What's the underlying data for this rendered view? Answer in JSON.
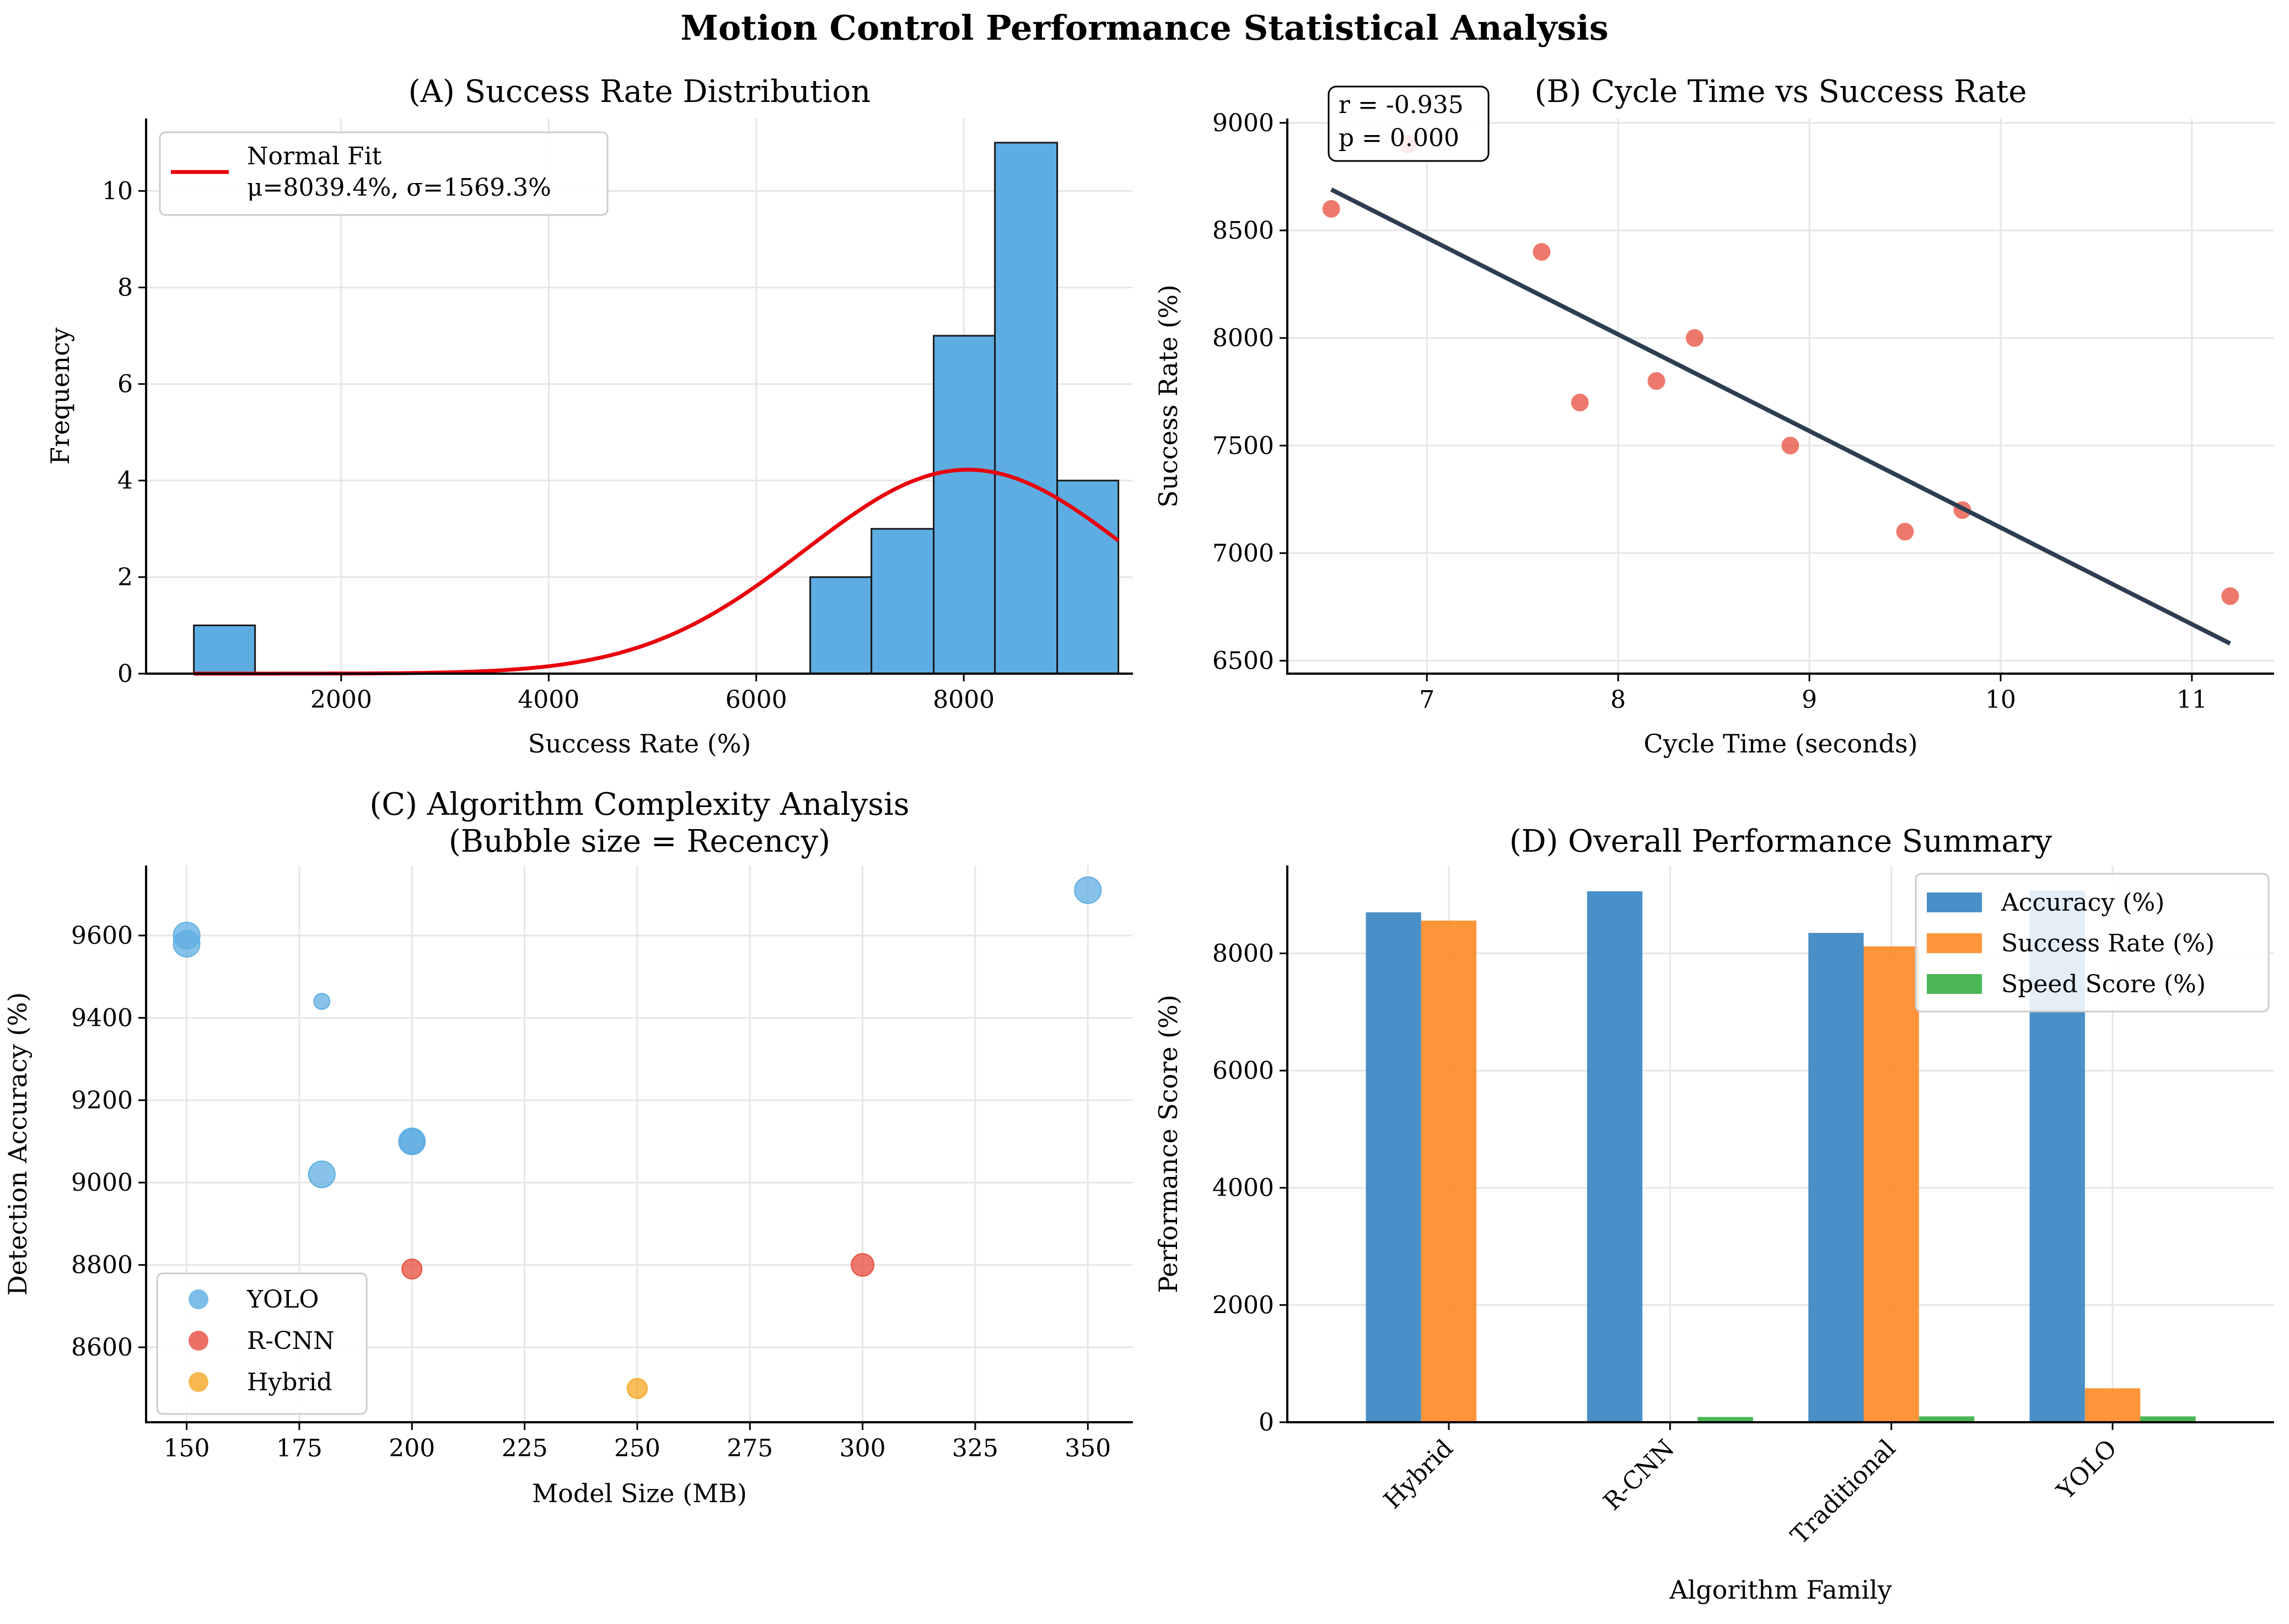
{
  "figure": {
    "title": "Motion Control Performance Statistical Analysis"
  },
  "chart_data": [
    {
      "id": "A",
      "type": "bar",
      "subtype": "histogram",
      "title": "(A) Success Rate Distribution",
      "xlabel": "Success Rate (%)",
      "ylabel": "Frequency",
      "xlim": [
        120,
        9630
      ],
      "ylim": [
        0,
        11.5
      ],
      "xticks": [
        2000,
        4000,
        6000,
        8000
      ],
      "yticks": [
        0,
        2,
        4,
        6,
        8,
        10
      ],
      "bins": [
        {
          "x0": 580,
          "x1": 1170,
          "count": 1
        },
        {
          "x0": 6520,
          "x1": 7110,
          "count": 2
        },
        {
          "x0": 7110,
          "x1": 7710,
          "count": 3
        },
        {
          "x0": 7710,
          "x1": 8300,
          "count": 7
        },
        {
          "x0": 8300,
          "x1": 8900,
          "count": 11
        },
        {
          "x0": 8900,
          "x1": 9490,
          "count": 4
        }
      ],
      "fit": {
        "name": "Normal Fit",
        "mu": 8039.4,
        "sigma": 1569.3,
        "scale": 16.6,
        "x_range": [
          580,
          9490
        ]
      },
      "legend": [
        "Normal Fit",
        "μ=8039.4%, σ=1569.3%"
      ],
      "legend_position": "upper left",
      "colors": {
        "bars": "#5dade2",
        "fit": "#e8000b"
      },
      "grid": true
    },
    {
      "id": "B",
      "type": "scatter",
      "title": "(B) Cycle Time vs Success Rate",
      "xlabel": "Cycle Time (seconds)",
      "ylabel": "Success Rate (%)",
      "xlim": [
        6.27,
        11.43
      ],
      "ylim": [
        6440,
        9020
      ],
      "xticks": [
        7,
        8,
        9,
        10,
        11
      ],
      "yticks": [
        6500,
        7000,
        7500,
        8000,
        8500,
        9000
      ],
      "points": [
        {
          "x": 6.5,
          "y": 8600
        },
        {
          "x": 6.9,
          "y": 8900
        },
        {
          "x": 7.6,
          "y": 8400
        },
        {
          "x": 7.8,
          "y": 7700
        },
        {
          "x": 8.2,
          "y": 7800
        },
        {
          "x": 8.4,
          "y": 8000
        },
        {
          "x": 8.9,
          "y": 7500
        },
        {
          "x": 9.5,
          "y": 7100
        },
        {
          "x": 9.8,
          "y": 7200
        },
        {
          "x": 11.2,
          "y": 6800
        }
      ],
      "trend": {
        "x": [
          6.5,
          11.2
        ],
        "y": [
          8690,
          6580
        ]
      },
      "annotation": [
        "r = -0.935",
        "p = 0.000"
      ],
      "colors": {
        "points": "#e74c3c",
        "trend": "#2c3e50"
      },
      "grid": true
    },
    {
      "id": "C",
      "type": "scatter",
      "subtype": "bubble",
      "title": "(C) Algorithm Complexity Analysis",
      "subtitle": "(Bubble size = Recency)",
      "xlabel": "Model Size (MB)",
      "ylabel": "Detection Accuracy (%)",
      "xlim": [
        141,
        360
      ],
      "ylim": [
        8418,
        9770
      ],
      "xticks": [
        150,
        175,
        200,
        225,
        250,
        275,
        300,
        325,
        350
      ],
      "yticks": [
        8600,
        8800,
        9000,
        9200,
        9400,
        9600
      ],
      "series": [
        {
          "name": "YOLO",
          "color": "#5dade2",
          "points": [
            {
              "x": 150,
              "y": 9600,
              "size": 1.0
            },
            {
              "x": 150,
              "y": 9580,
              "size": 1.0
            },
            {
              "x": 180,
              "y": 9440,
              "size": 0.6
            },
            {
              "x": 180,
              "y": 9020,
              "size": 1.0
            },
            {
              "x": 200,
              "y": 9100,
              "size": 1.0
            },
            {
              "x": 200,
              "y": 9100,
              "size": 0.9
            },
            {
              "x": 350,
              "y": 9710,
              "size": 1.0
            }
          ]
        },
        {
          "name": "R-CNN",
          "color": "#e74c3c",
          "points": [
            {
              "x": 200,
              "y": 8790,
              "size": 0.75
            },
            {
              "x": 300,
              "y": 8800,
              "size": 0.85
            }
          ]
        },
        {
          "name": "Hybrid",
          "color": "#f5a623",
          "points": [
            {
              "x": 250,
              "y": 8500,
              "size": 0.75
            }
          ]
        }
      ],
      "legend_position": "lower left",
      "grid": true
    },
    {
      "id": "D",
      "type": "bar",
      "subtype": "grouped",
      "title": "(D) Overall Performance Summary",
      "xlabel": "Algorithm Family",
      "ylabel": "Performance Score (%)",
      "ylim": [
        0,
        9500
      ],
      "yticks": [
        0,
        2000,
        4000,
        6000,
        8000
      ],
      "categories": [
        "Hybrid",
        "R-CNN",
        "Traditional",
        "YOLO"
      ],
      "series": [
        {
          "name": "Accuracy (%)",
          "color": "#3a86c3",
          "values": [
            8700,
            9060,
            8350,
            9070
          ]
        },
        {
          "name": "Success Rate (%)",
          "color": "#ff8c2a",
          "values": [
            8560,
            0,
            8120,
            580
          ]
        },
        {
          "name": "Speed Score (%)",
          "color": "#3cb04a",
          "values": [
            0,
            90,
            100,
            100
          ]
        }
      ],
      "legend_position": "upper right",
      "grid": true
    }
  ]
}
